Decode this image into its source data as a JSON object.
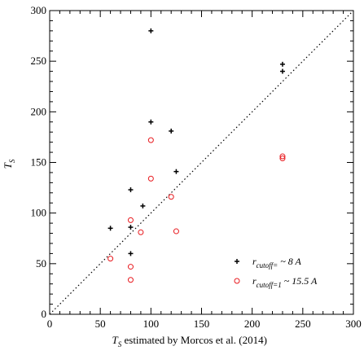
{
  "chart_data": {
    "type": "scatter",
    "xlim": [
      0,
      300
    ],
    "ylim": [
      0,
      300
    ],
    "xticks": [
      0,
      50,
      100,
      150,
      200,
      250,
      300
    ],
    "yticks": [
      0,
      50,
      100,
      150,
      200,
      250,
      300
    ],
    "xlabel": {
      "main": "T",
      "sub": "S",
      "rest": " estimated by Morcos et al. (2014)"
    },
    "ylabel": {
      "main": "T",
      "sub": "S"
    },
    "grid": false,
    "reference_line": "y = x",
    "legend_position": "bottom-right",
    "series": [
      {
        "name": {
          "main": "r",
          "sub": "cutoff=",
          "rest": " ~ 8 A"
        },
        "marker": "plus",
        "color": "#000000",
        "points": [
          [
            100,
            280
          ],
          [
            100,
            190
          ],
          [
            120,
            181
          ],
          [
            80,
            123
          ],
          [
            125,
            141
          ],
          [
            92,
            107
          ],
          [
            60,
            85
          ],
          [
            80,
            86
          ],
          [
            80,
            60
          ],
          [
            230,
            247
          ],
          [
            230,
            240
          ]
        ]
      },
      {
        "name": {
          "main": "r",
          "sub": "cutoff=1",
          "rest": " ~ 15.5 A"
        },
        "marker": "circle",
        "color": "#e8191e",
        "points": [
          [
            100,
            172
          ],
          [
            100,
            134
          ],
          [
            120,
            116
          ],
          [
            125,
            82
          ],
          [
            80,
            93
          ],
          [
            90,
            81
          ],
          [
            60,
            55
          ],
          [
            80,
            47
          ],
          [
            80,
            34
          ],
          [
            230,
            156
          ],
          [
            230,
            154
          ]
        ]
      }
    ]
  }
}
